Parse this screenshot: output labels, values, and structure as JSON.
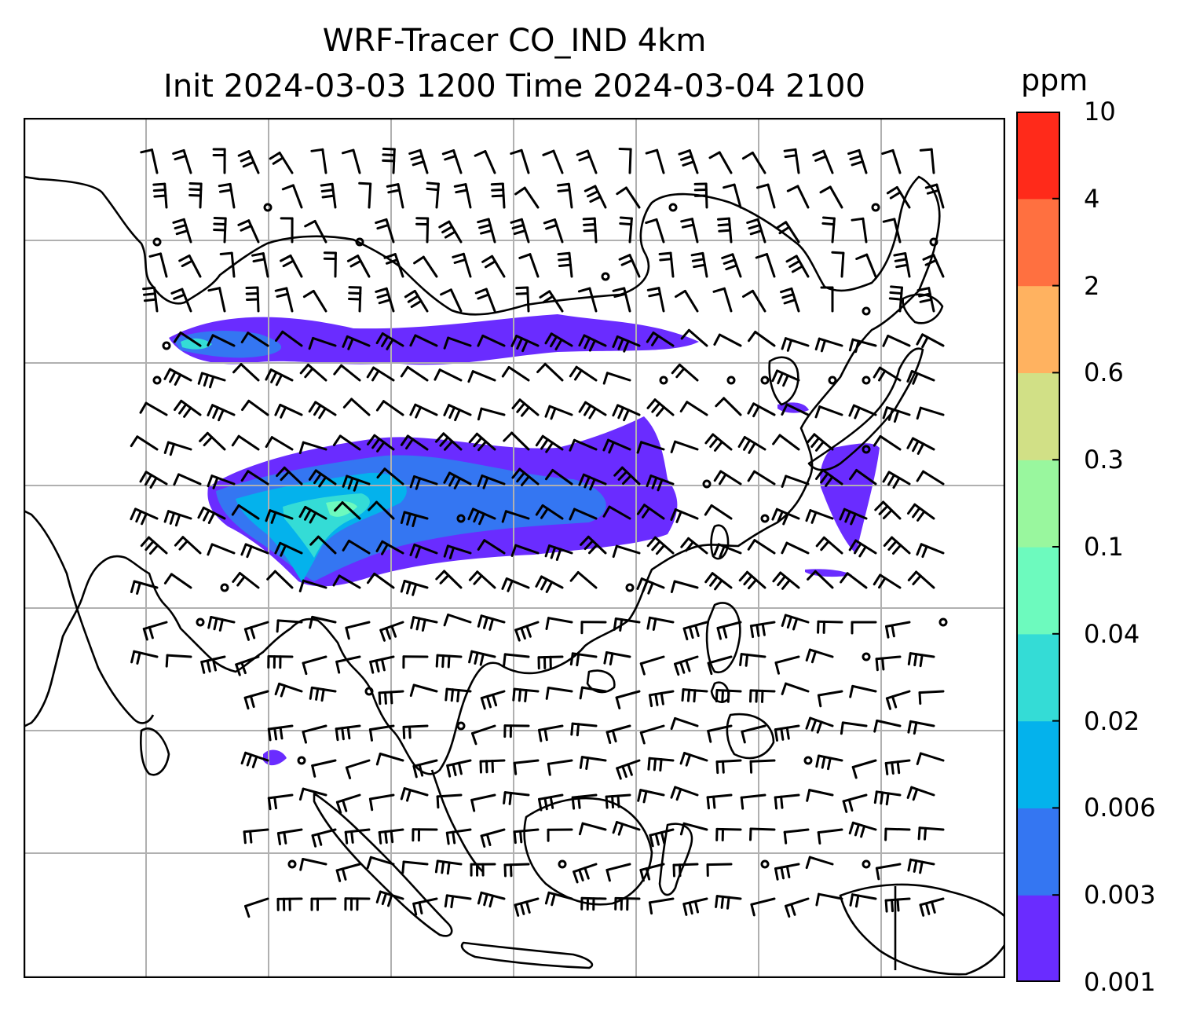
{
  "title": {
    "line1": "WRF-Tracer CO_IND 4km",
    "line2": "Init 2024-03-03 1200 Time 2024-03-04 2100"
  },
  "colorbar": {
    "unit": "ppm",
    "ticks": [
      "0.001",
      "0.003",
      "0.006",
      "0.02",
      "0.04",
      "0.1",
      "0.3",
      "0.6",
      "2",
      "4",
      "10"
    ],
    "colors": [
      "#6a2cff",
      "#3476f2",
      "#04b2ec",
      "#34dcd6",
      "#6dfabe",
      "#99f79e",
      "#d1e086",
      "#ffb260",
      "#ff7040",
      "#ff2a1a"
    ]
  },
  "map": {
    "gridlines": true,
    "coastline_color": "#000000",
    "barb_color": "#000000",
    "grid_color": "#b0b0b0"
  }
}
